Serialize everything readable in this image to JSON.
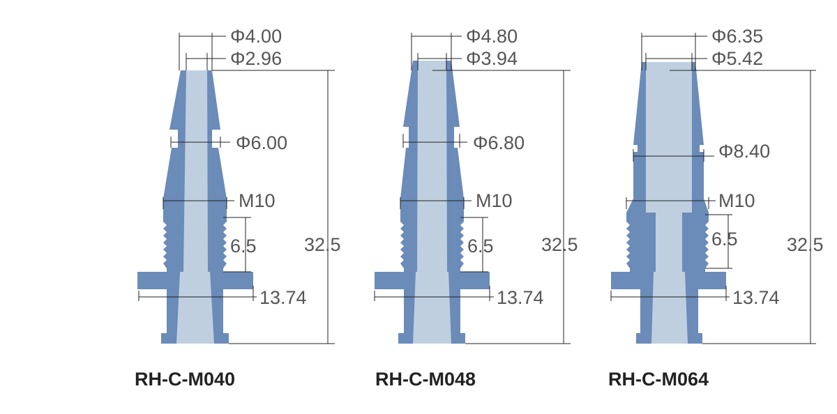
{
  "colors": {
    "body": "#6b8bb8",
    "bore": "#bfcfe0",
    "dimension_line": "#222222",
    "dimension_text": "#555555",
    "model_text": "#222222"
  },
  "fittings": [
    {
      "model": "RH-C-M040",
      "dims": {
        "outer_tip": "Φ4.00",
        "inner_tip": "Φ2.96",
        "barb": "Φ6.00",
        "thread": "M10",
        "thread_len": "6.5",
        "flange": "13.74",
        "height": "32.5"
      }
    },
    {
      "model": "RH-C-M048",
      "dims": {
        "outer_tip": "Φ4.80",
        "inner_tip": "Φ3.94",
        "barb": "Φ6.80",
        "thread": "M10",
        "thread_len": "6.5",
        "flange": "13.74",
        "height": "32.5"
      }
    },
    {
      "model": "RH-C-M064",
      "dims": {
        "outer_tip": "Φ6.35",
        "inner_tip": "Φ5.42",
        "barb": "Φ8.40",
        "thread": "M10",
        "thread_len": "6.5",
        "flange": "13.74",
        "height": "32.5"
      }
    }
  ]
}
